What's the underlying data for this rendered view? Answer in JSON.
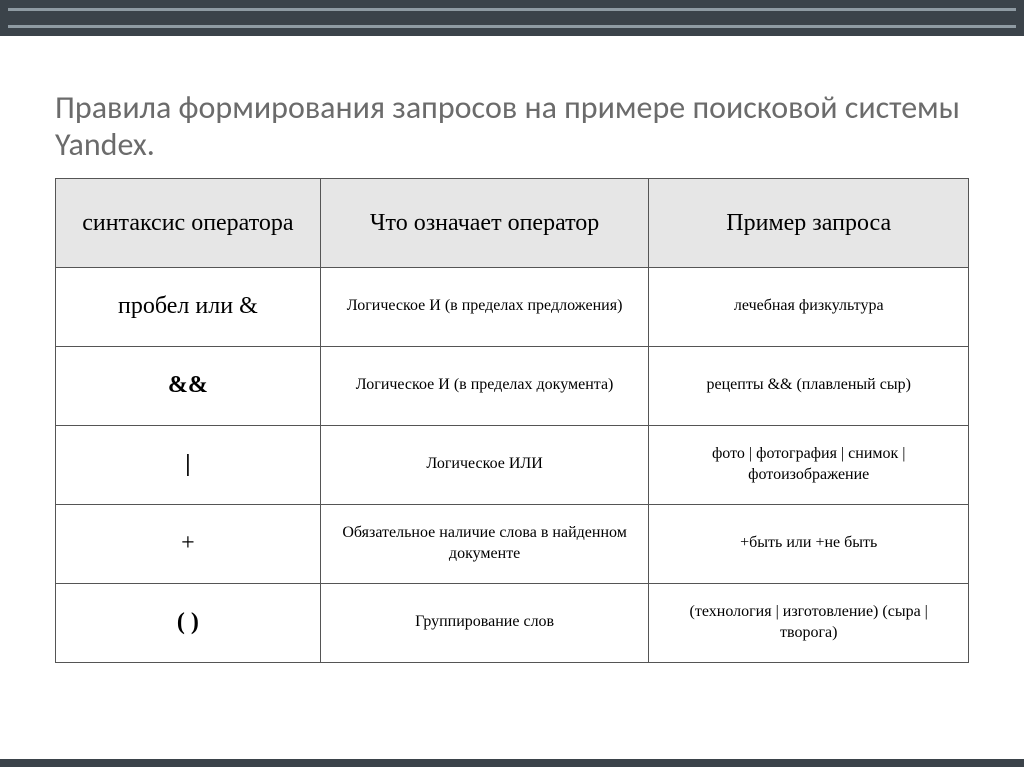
{
  "slide": {
    "title": "Правила формирования запросов на примере поисковой системы Yandex.",
    "colors": {
      "top_band": "#3b434a",
      "top_inner_line": "#8f9ba3",
      "bottom_band": "#3b434a",
      "background": "#ffffff",
      "title_color": "#6b6b6b",
      "header_bg": "#e6e6e6",
      "border_color": "#555555",
      "text_color": "#000000"
    },
    "typography": {
      "title_font": "Calibri Light",
      "title_fontsize": 32,
      "header_fontsize": 24,
      "operator_fontsize": 24,
      "body_fontsize": 16
    },
    "table": {
      "columns": [
        {
          "key": "syntax",
          "label": "синтаксис оператора",
          "width_pct": 29
        },
        {
          "key": "meaning",
          "label": "Что означает оператор",
          "width_pct": 36
        },
        {
          "key": "example",
          "label": "Пример запроса",
          "width_pct": 35
        }
      ],
      "rows": [
        {
          "syntax": "пробел или &",
          "syntax_bold": false,
          "meaning": "Логическое И (в пределах предложения)",
          "example": "лечебная физкультура"
        },
        {
          "syntax": "&&",
          "syntax_bold": true,
          "meaning": "Логическое И (в пределах документа)",
          "example": "рецепты && (плавленый сыр)"
        },
        {
          "syntax": "|",
          "syntax_bold": true,
          "meaning": "Логическое ИЛИ",
          "example": "фото | фотография | снимок | фотоизображение"
        },
        {
          "syntax": "+",
          "syntax_bold": false,
          "meaning": "Обязательное наличие слова в найденном документе",
          "example": "+быть или +не быть"
        },
        {
          "syntax": "( )",
          "syntax_bold": true,
          "meaning": "Группирование слов",
          "example": "(технология | изготовление) (сыра | творога)"
        }
      ]
    }
  }
}
